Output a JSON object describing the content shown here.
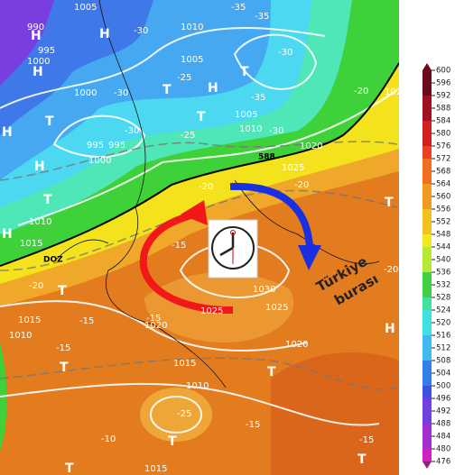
{
  "map": {
    "labels": [
      "1005",
      "1010",
      "1005",
      "990",
      "995",
      "1000",
      "1000",
      "995",
      "995",
      "1000",
      "1005",
      "1010",
      "1020",
      "1025",
      "1010",
      "1015",
      "1015",
      "1010",
      "1020",
      "1015",
      "1010",
      "1015",
      "1030",
      "1025",
      "1025",
      "1020",
      "1020",
      "-35",
      "-35",
      "-30",
      "-30",
      "-25",
      "-35",
      "-30",
      "-30",
      "-25",
      "-30",
      "-20",
      "-20",
      "-20",
      "-15",
      "-20",
      "-15",
      "-15",
      "-15",
      "-15",
      "-25",
      "-10",
      "-15",
      "-20",
      "H",
      "H",
      "H",
      "T",
      "T",
      "H",
      "T",
      "T",
      "H",
      "H",
      "T",
      "H",
      "T",
      "T",
      "T",
      "T",
      "H",
      "T",
      "T",
      "T",
      "588",
      "DOZ"
    ],
    "annotation": [
      "Türkiye",
      "burası"
    ],
    "colorbar": {
      "ticks": [
        600,
        596,
        592,
        588,
        584,
        580,
        576,
        572,
        568,
        564,
        560,
        556,
        552,
        548,
        544,
        540,
        536,
        532,
        528,
        524,
        520,
        516,
        512,
        508,
        504,
        500,
        496,
        492,
        488,
        484,
        480,
        476
      ]
    }
  }
}
